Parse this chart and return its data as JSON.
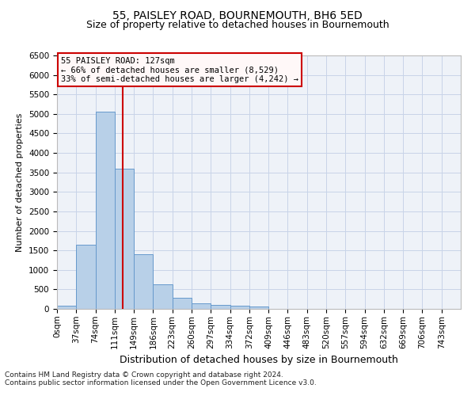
{
  "title_line1": "55, PAISLEY ROAD, BOURNEMOUTH, BH6 5ED",
  "title_line2": "Size of property relative to detached houses in Bournemouth",
  "xlabel": "Distribution of detached houses by size in Bournemouth",
  "ylabel": "Number of detached properties",
  "footer_line1": "Contains HM Land Registry data © Crown copyright and database right 2024.",
  "footer_line2": "Contains public sector information licensed under the Open Government Licence v3.0.",
  "annotation_line1": "55 PAISLEY ROAD: 127sqm",
  "annotation_line2": "← 66% of detached houses are smaller (8,529)",
  "annotation_line3": "33% of semi-detached houses are larger (4,242) →",
  "bar_values": [
    75,
    1650,
    5050,
    3600,
    1410,
    620,
    290,
    145,
    100,
    75,
    55,
    0,
    0,
    0,
    0,
    0,
    0,
    0,
    0
  ],
  "bar_color": "#b8d0e8",
  "bar_edge_color": "#6699cc",
  "categories": [
    "0sqm",
    "37sqm",
    "74sqm",
    "111sqm",
    "149sqm",
    "186sqm",
    "223sqm",
    "260sqm",
    "297sqm",
    "334sqm",
    "372sqm",
    "409sqm",
    "446sqm",
    "483sqm",
    "520sqm",
    "557sqm",
    "594sqm",
    "632sqm",
    "669sqm",
    "706sqm",
    "743sqm"
  ],
  "ylim": [
    0,
    6500
  ],
  "yticks": [
    0,
    500,
    1000,
    1500,
    2000,
    2500,
    3000,
    3500,
    4000,
    4500,
    5000,
    5500,
    6000,
    6500
  ],
  "bin_width": 37,
  "vline_x": 127,
  "vline_color": "#cc0000",
  "grid_color": "#c8d4e8",
  "background_color": "#eef2f8",
  "annotation_box_facecolor": "#fff8f8",
  "annotation_box_edgecolor": "#cc0000",
  "title1_fontsize": 10,
  "title2_fontsize": 9,
  "ylabel_fontsize": 8,
  "xlabel_fontsize": 9,
  "tick_fontsize": 7.5,
  "footer_fontsize": 6.5,
  "annot_fontsize": 7.5
}
